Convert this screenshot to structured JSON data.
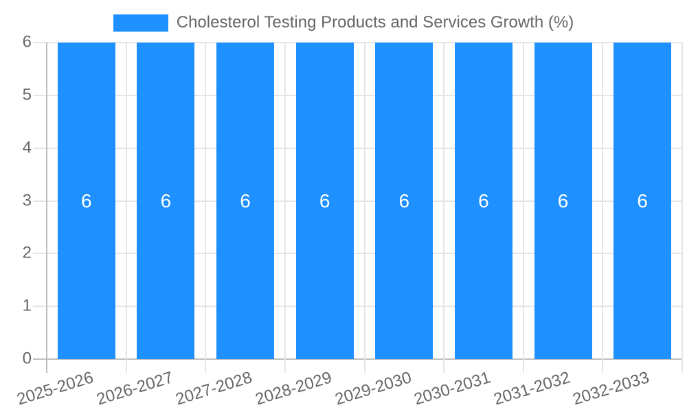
{
  "chart_data": {
    "type": "bar",
    "title": "Cholesterol Testing Products and Services Growth (%)",
    "categories": [
      "2025-2026",
      "2026-2027",
      "2027-2028",
      "2028-2029",
      "2029-2030",
      "2030-2031",
      "2031-2032",
      "2032-2033"
    ],
    "series": [
      {
        "name": "Cholesterol Testing Products and Services Growth (%)",
        "values": [
          6,
          6,
          6,
          6,
          6,
          6,
          6,
          6
        ],
        "color": "#1E90FF"
      }
    ],
    "bar_value_labels": [
      "6",
      "6",
      "6",
      "6",
      "6",
      "6",
      "6",
      "6"
    ],
    "xlabel": "",
    "ylabel": "",
    "ylim": [
      0,
      6
    ],
    "yticks": [
      0,
      1,
      2,
      3,
      4,
      5,
      6
    ],
    "grid": true,
    "legend_position": "top-center",
    "colors": {
      "bar": "#1E90FF",
      "bar_label_text": "#ffffff",
      "axis_text": "#666666",
      "gridline": "#e5e5e5",
      "zero_line": "#bfbfbf",
      "background": "#ffffff"
    }
  }
}
